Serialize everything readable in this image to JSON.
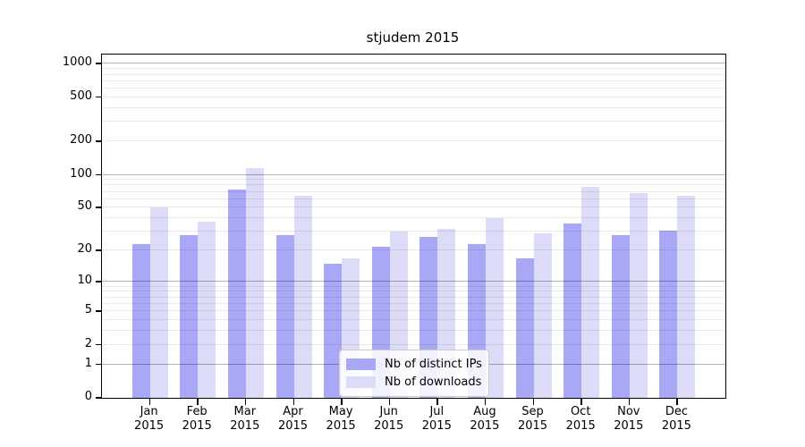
{
  "chart_data": {
    "type": "bar",
    "title": "stjudem 2015",
    "categories": [
      "Jan",
      "Feb",
      "Mar",
      "Apr",
      "May",
      "Jun",
      "Jul",
      "Aug",
      "Sep",
      "Oct",
      "Nov",
      "Dec"
    ],
    "x_tick_second_line": "2015",
    "series": [
      {
        "name": "Nb of distinct IPs",
        "color": "#a8a8f6",
        "values": [
          23,
          28,
          74,
          28,
          15,
          22,
          27,
          23,
          17,
          36,
          28,
          31
        ]
      },
      {
        "name": "Nb of downloads",
        "color": "#dcdcf8",
        "values": [
          50,
          37,
          116,
          65,
          17,
          30,
          32,
          40,
          29,
          78,
          68,
          64
        ]
      }
    ],
    "yscale": "log10(value+1)",
    "ylim": [
      0,
      1213
    ],
    "y_ticks": [
      0,
      1,
      2,
      5,
      10,
      20,
      50,
      100,
      200,
      500,
      1000
    ],
    "major_grid": [
      1,
      10,
      100,
      1000
    ],
    "minor_grid": [
      2,
      3,
      4,
      5,
      6,
      7,
      8,
      9,
      20,
      30,
      40,
      50,
      60,
      70,
      80,
      90,
      200,
      300,
      400,
      500,
      600,
      700,
      800,
      900
    ],
    "grid": true,
    "legend_position": "lower center"
  },
  "colors": {
    "bar_distinct_ips": "#a8a8f6",
    "bar_downloads": "#dcdcf8",
    "axis": "#000000",
    "major_grid": "#b3b3b3",
    "minor_grid": "#e9e9e9",
    "legend_border": "#cccccc",
    "legend_background": "#ffffff"
  }
}
